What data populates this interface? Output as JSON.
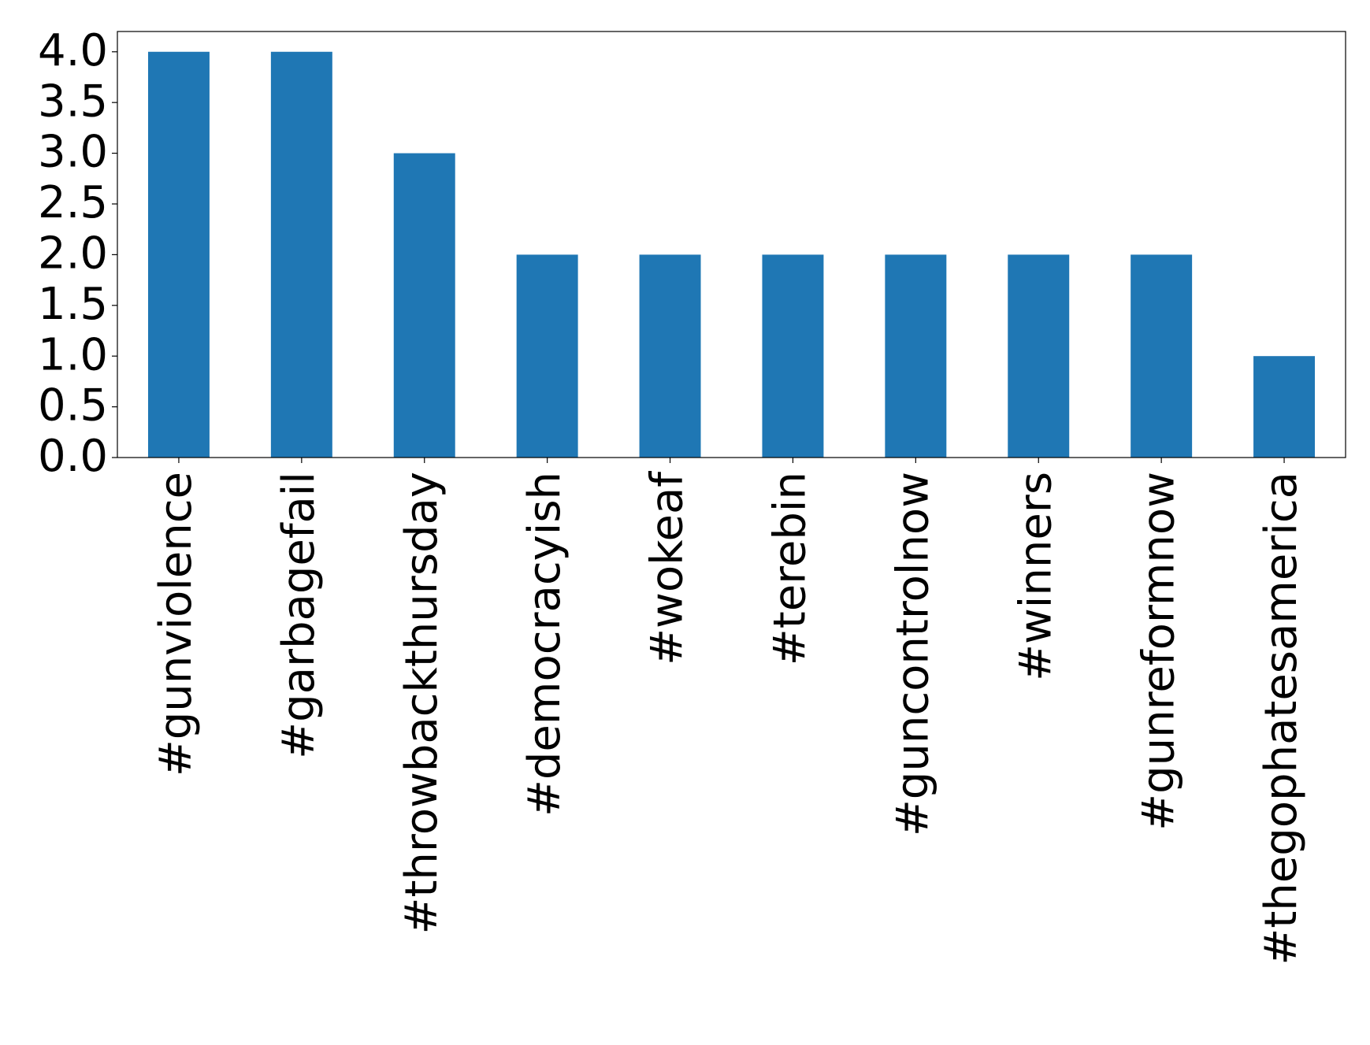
{
  "chart_data": {
    "type": "bar",
    "categories": [
      "#gunviolence",
      "#garbagefail",
      "#throwbackthursday",
      "#democracyish",
      "#wokeaf",
      "#terebin",
      "#guncontrolnow",
      "#winners",
      "#gunreformnow",
      "#thegophatesamerica"
    ],
    "values": [
      4,
      4,
      3,
      2,
      2,
      2,
      2,
      2,
      2,
      1
    ],
    "color": "#1f77b4",
    "ylim": [
      0,
      4.2
    ],
    "yticks": [
      {
        "value": 0,
        "label": "0.0"
      },
      {
        "value": 0.5,
        "label": "0.5"
      },
      {
        "value": 1,
        "label": "1.0"
      },
      {
        "value": 1.5,
        "label": "1.5"
      },
      {
        "value": 2,
        "label": "2.0"
      },
      {
        "value": 2.5,
        "label": "2.5"
      },
      {
        "value": 3,
        "label": "3.0"
      },
      {
        "value": 3.5,
        "label": "3.5"
      },
      {
        "value": 4,
        "label": "4.0"
      }
    ],
    "grid": false
  }
}
